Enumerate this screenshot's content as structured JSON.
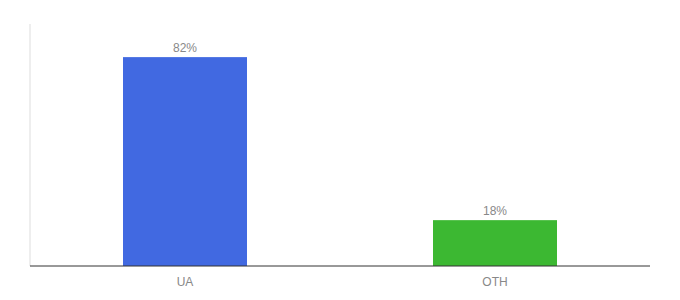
{
  "chart_data": {
    "type": "bar",
    "categories": [
      "UA",
      "OTH"
    ],
    "values": [
      82,
      18
    ],
    "value_labels": [
      "82%",
      "18%"
    ],
    "colors": [
      "#4169e1",
      "#3cb832"
    ],
    "ylim": [
      0,
      95
    ],
    "data_labels": true,
    "tick_labels": "x",
    "grid": false
  }
}
